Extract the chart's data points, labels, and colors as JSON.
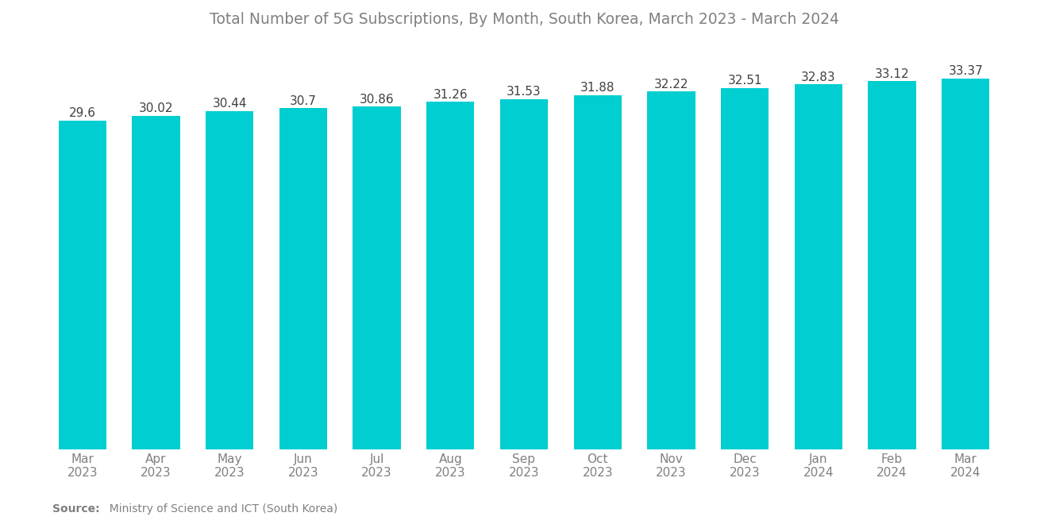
{
  "title": "Total Number of 5G Subscriptions, By Month, South Korea, March 2023 - March 2024",
  "categories": [
    "Mar\n2023",
    "Apr\n2023",
    "May\n2023",
    "Jun\n2023",
    "Jul\n2023",
    "Aug\n2023",
    "Sep\n2023",
    "Oct\n2023",
    "Nov\n2023",
    "Dec\n2023",
    "Jan\n2024",
    "Feb\n2024",
    "Mar\n2024"
  ],
  "values": [
    29.6,
    30.02,
    30.44,
    30.7,
    30.86,
    31.26,
    31.53,
    31.88,
    32.22,
    32.51,
    32.83,
    33.12,
    33.37
  ],
  "bar_color": "#00CED1",
  "ylim": [
    0,
    36.5
  ],
  "title_fontsize": 13.5,
  "tick_fontsize": 11,
  "label_fontsize": 11,
  "source_bold": "Source:",
  "source_normal": "  Ministry of Science and ICT (South Korea)",
  "background_color": "#ffffff",
  "text_color": "#808080",
  "label_color": "#404040",
  "logo_color": "#1e3a5c"
}
